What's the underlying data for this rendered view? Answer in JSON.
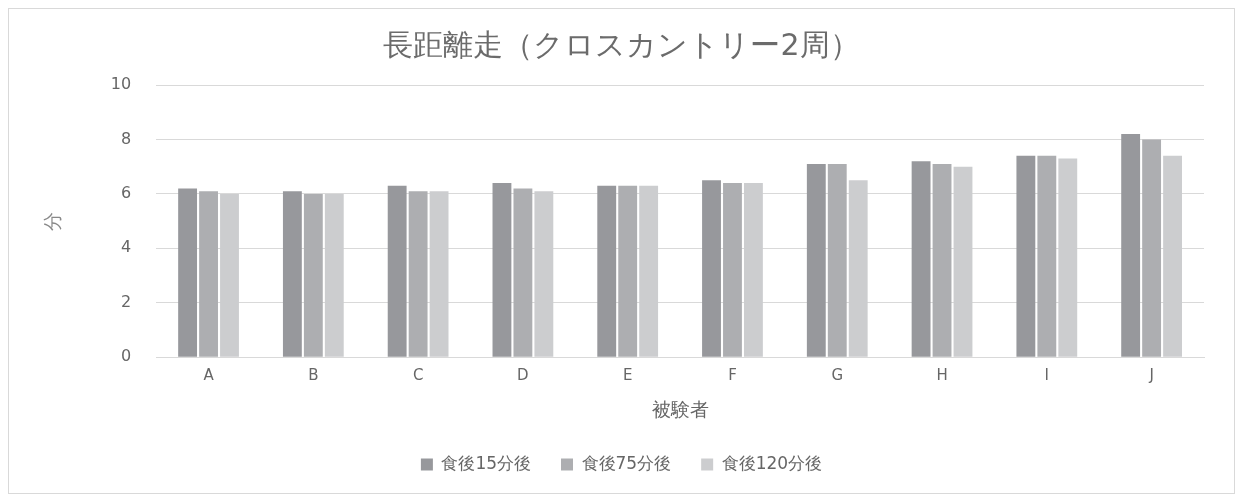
{
  "chart_data": {
    "type": "bar",
    "title": "長距離走（クロスカントリー2周）",
    "xlabel": "被験者",
    "ylabel": "分",
    "categories": [
      "A",
      "B",
      "C",
      "D",
      "E",
      "F",
      "G",
      "H",
      "I",
      "J"
    ],
    "series": [
      {
        "name": "食後15分後",
        "color": "#97989c",
        "values": [
          6.2,
          6.1,
          6.3,
          6.4,
          6.3,
          6.5,
          7.1,
          7.2,
          7.4,
          8.2
        ]
      },
      {
        "name": "食後75分後",
        "color": "#adaeb1",
        "values": [
          6.1,
          6.0,
          6.1,
          6.2,
          6.3,
          6.4,
          7.1,
          7.1,
          7.4,
          8.0
        ]
      },
      {
        "name": "食後120分後",
        "color": "#cccdcf",
        "values": [
          6.0,
          6.0,
          6.1,
          6.1,
          6.3,
          6.4,
          6.5,
          7.0,
          7.3,
          7.4
        ]
      }
    ],
    "ylim": [
      0,
      10
    ],
    "yticks": [
      0,
      2,
      4,
      6,
      8,
      10
    ],
    "grid": "y",
    "legend": "bottom"
  }
}
